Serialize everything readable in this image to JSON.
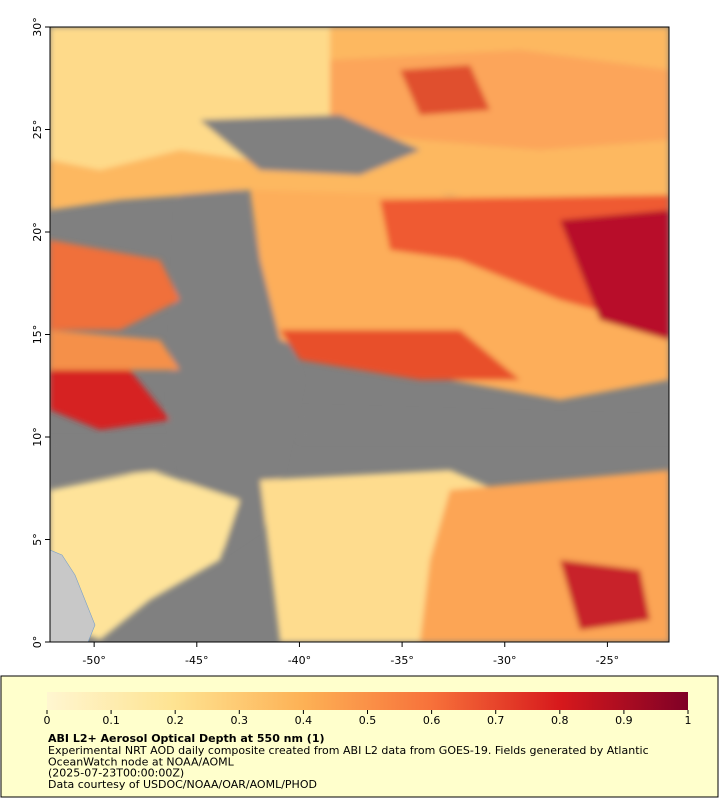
{
  "map": {
    "xlim": [
      -52.15,
      -22.0
    ],
    "ylim": [
      0,
      30
    ],
    "xticks": [
      {
        "value": -50,
        "label": "-50°"
      },
      {
        "value": -45,
        "label": "-45°"
      },
      {
        "value": -40,
        "label": "-40°"
      },
      {
        "value": -35,
        "label": "-35°"
      },
      {
        "value": -30,
        "label": "-30°"
      },
      {
        "value": -25,
        "label": "-25°"
      }
    ],
    "yticks": [
      {
        "value": 0,
        "label": "0°"
      },
      {
        "value": 5,
        "label": "5°"
      },
      {
        "value": 10,
        "label": "10°"
      },
      {
        "value": 15,
        "label": "15°"
      },
      {
        "value": 20,
        "label": "20°"
      },
      {
        "value": 25,
        "label": "25°"
      },
      {
        "value": 30,
        "label": "30°"
      }
    ]
  },
  "colorbar": {
    "lim": [
      0,
      1
    ],
    "ticks": [
      0,
      0.1,
      0.2,
      0.3,
      0.4,
      0.5,
      0.6,
      0.7,
      0.8,
      0.9,
      1
    ]
  },
  "legend": {
    "title": "ABI L2+ Aerosol Optical Depth at 550 nm (1)",
    "lines": [
      "Experimental NRT AOD daily composite created from ABI L2 data from GOES-19. Fields generated by Atlantic",
      "OceanWatch node at NOAA/AOML",
      "(2025-07-23T00:00:00Z)",
      "Data courtesy of USDOC/NOAA/OAR/AOML/PHOD"
    ]
  }
}
